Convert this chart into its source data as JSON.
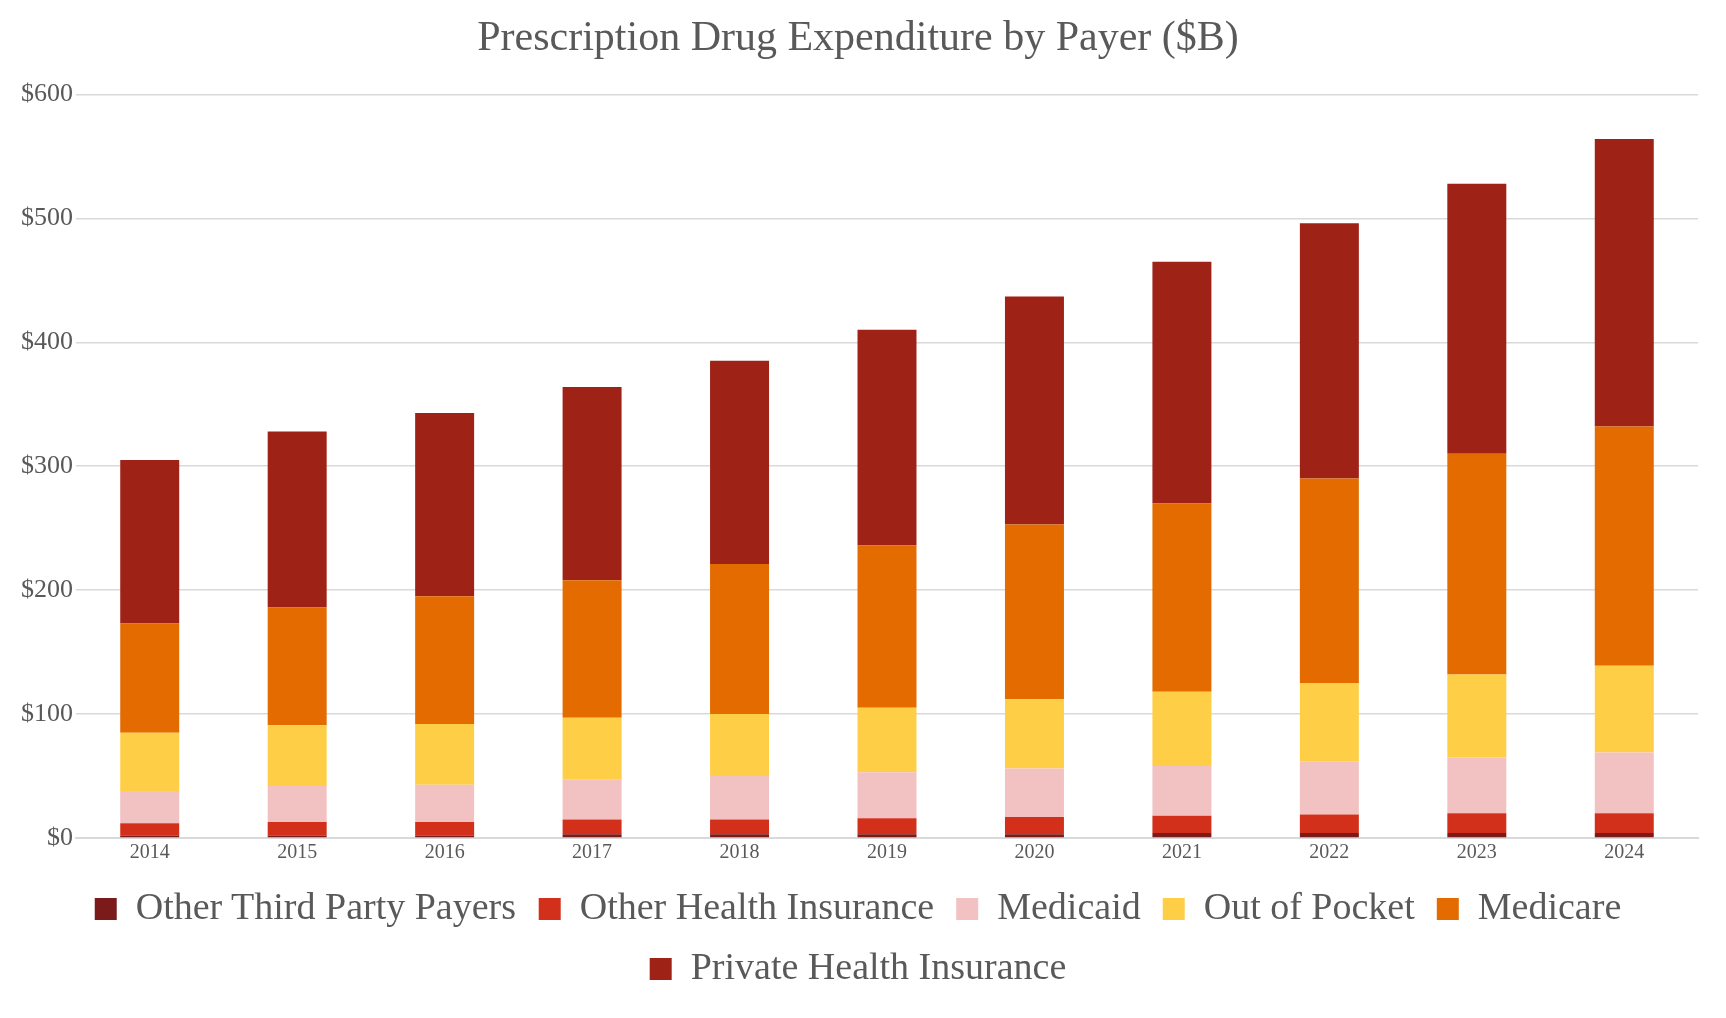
{
  "chart_data": {
    "type": "bar",
    "title": "Prescription Drug Expenditure by Payer ($B)",
    "stacked": true,
    "categories": [
      "2014",
      "2015",
      "2016",
      "2017",
      "2018",
      "2019",
      "2020",
      "2021",
      "2022",
      "2023",
      "2024"
    ],
    "series": [
      {
        "name": "Other Third Party Payers",
        "color": "#7b1a1a",
        "values": [
          2,
          2,
          2,
          3,
          3,
          3,
          3,
          4,
          4,
          4,
          4
        ]
      },
      {
        "name": "Other Health Insurance",
        "color": "#d3301c",
        "values": [
          10,
          11,
          11,
          12,
          12,
          13,
          14,
          14,
          15,
          16,
          16
        ]
      },
      {
        "name": "Medicaid",
        "color": "#f2c1c1",
        "values": [
          26,
          29,
          30,
          32,
          35,
          37,
          39,
          40,
          43,
          45,
          49
        ]
      },
      {
        "name": "Out of Pocket",
        "color": "#ffce47",
        "values": [
          47,
          49,
          49,
          50,
          50,
          52,
          56,
          60,
          63,
          67,
          70
        ]
      },
      {
        "name": "Medicare",
        "color": "#e36b00",
        "values": [
          88,
          95,
          103,
          111,
          121,
          131,
          141,
          152,
          165,
          178,
          193
        ]
      },
      {
        "name": "Private Health Insurance",
        "color": "#9e2215",
        "values": [
          132,
          142,
          148,
          156,
          164,
          174,
          184,
          195,
          206,
          218,
          232
        ]
      }
    ],
    "ylim": [
      0,
      600
    ],
    "yticks": [
      {
        "value": 0,
        "label": "$0"
      },
      {
        "value": 100,
        "label": "$100"
      },
      {
        "value": 200,
        "label": "$200"
      },
      {
        "value": 300,
        "label": "$300"
      },
      {
        "value": 400,
        "label": "$400"
      },
      {
        "value": 500,
        "label": "$500"
      },
      {
        "value": 600,
        "label": "$600"
      }
    ],
    "grid": "y",
    "legend": "bottom"
  }
}
